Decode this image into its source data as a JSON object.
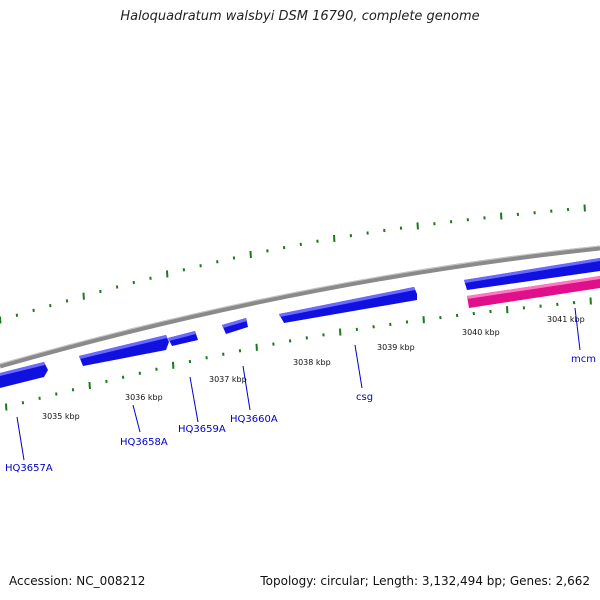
{
  "title": "Haloquadratum walsbyi DSM 16790, complete genome",
  "footer": {
    "accession": "Accession: NC_008212",
    "topology": "Topology: circular; Length: 3,132,494 bp; Genes: 2,662"
  },
  "colors": {
    "backbone": "#8a8a8a",
    "forward_gene": "#1010e0",
    "forward_gene_highlight": "#6a6aff",
    "reverse_gene": "#e0108a",
    "reverse_gene_highlight": "#ff77c4",
    "ruler_tick": "#1a7a1a",
    "gene_label": "#0000cc"
  },
  "ruler_labels": [
    "3035 kbp",
    "3036 kbp",
    "3037 kbp",
    "3038 kbp",
    "3039 kbp",
    "3040 kbp",
    "3041 kbp"
  ],
  "gene_labels": [
    "HQ3657A",
    "HQ3658A",
    "HQ3659A",
    "HQ3660A",
    "csg",
    "mcm"
  ],
  "features": [
    {
      "strand": "forward",
      "name": "HQ3657A"
    },
    {
      "strand": "forward",
      "name": "HQ3658A"
    },
    {
      "strand": "forward",
      "name": "HQ3659A"
    },
    {
      "strand": "forward",
      "name": "HQ3660A"
    },
    {
      "strand": "forward",
      "name": "csg"
    },
    {
      "strand": "forward",
      "name": "mcm"
    },
    {
      "strand": "reverse",
      "name": ""
    }
  ]
}
